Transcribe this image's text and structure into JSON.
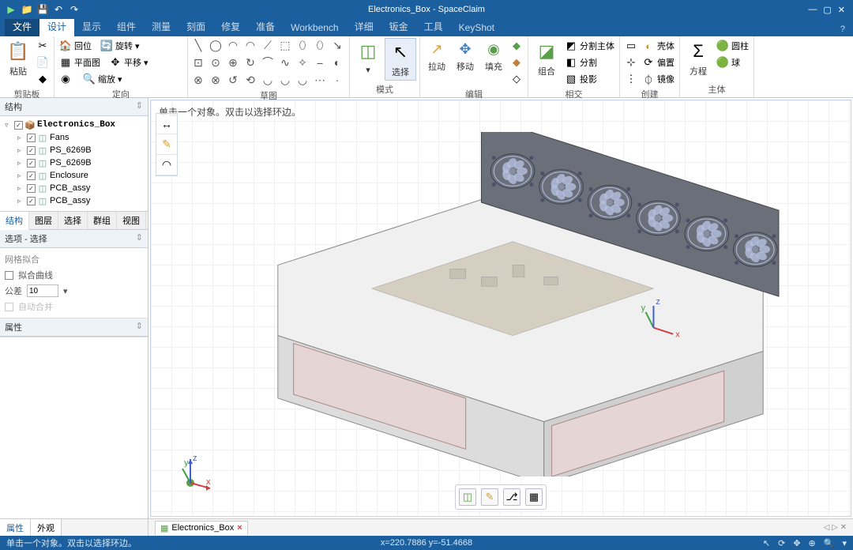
{
  "title": "Electronics_Box - SpaceClaim",
  "window_controls": {
    "min": "—",
    "max": "▢",
    "close": "✕"
  },
  "qat": [
    "▶",
    "📁",
    "💾",
    "↶",
    "↷"
  ],
  "menu": {
    "file": "文件",
    "tabs": [
      "设计",
      "显示",
      "组件",
      "测量",
      "刻面",
      "修复",
      "准备",
      "Workbench",
      "详细",
      "钣金",
      "工具",
      "KeyShot"
    ],
    "active": "设计",
    "help": "?"
  },
  "ribbon": {
    "clipboard": {
      "label": "剪贴板",
      "paste": "粘贴"
    },
    "orient": {
      "label": "定向",
      "rows": [
        [
          "🏠",
          "回位",
          "🔄",
          "旋转 ▾"
        ],
        [
          "▦",
          "平面图",
          "✥",
          "平移 ▾"
        ],
        [
          "◉",
          "",
          "🔍",
          "缩放 ▾"
        ]
      ]
    },
    "sketch": {
      "label": "草图",
      "glyphs": [
        "╲",
        "◯",
        "◠",
        "◠",
        "⟋",
        "⬚",
        "⬯",
        "⬯",
        "↘",
        "⊡",
        "⊙",
        "⊕",
        "↻",
        "⌒",
        "∿",
        "✧",
        "⎯",
        "◐",
        "⊗",
        "⊗",
        "↺",
        "⟲",
        "◡",
        "◡",
        "◡",
        "⋯",
        "·"
      ]
    },
    "mode": {
      "label": "模式",
      "btn1": "◫",
      "btn2": "选择",
      "btn2_icon": "↖"
    },
    "edit": {
      "label": "编辑",
      "items": [
        {
          "ic": "↗",
          "tx": "拉动"
        },
        {
          "ic": "✥",
          "tx": "移动"
        },
        {
          "ic": "◉",
          "tx": "填充"
        }
      ]
    },
    "intersect": {
      "label": "相交",
      "main": {
        "ic": "◪",
        "tx": "组合"
      },
      "rows": [
        [
          "◩",
          "分割主体"
        ],
        [
          "◧",
          "分割"
        ],
        [
          "▧",
          "投影"
        ]
      ]
    },
    "create": {
      "label": "创建",
      "col": [
        "▭",
        "⊹",
        "⋮"
      ],
      "rows": [
        [
          "◐",
          "壳体"
        ],
        [
          "⟳",
          "偏置"
        ],
        [
          "⏀",
          "镜像"
        ]
      ]
    },
    "body": {
      "label": "主体",
      "main": {
        "ic": "Σ",
        "tx": "方程"
      },
      "rows": [
        [
          "🟢",
          "圆柱"
        ],
        [
          "🟢",
          "球"
        ]
      ]
    }
  },
  "panels": {
    "structure": "结构",
    "tree": {
      "root": "Electronics_Box",
      "children": [
        "Fans",
        "PS_6269B",
        "PS_6269B",
        "Enclosure",
        "PCB_assy",
        "PCB_assy"
      ]
    },
    "left_tabs": [
      "结构",
      "图层",
      "选择",
      "群组",
      "视图"
    ],
    "left_active": "结构",
    "options": {
      "title": "选项 - 选择",
      "sec": "网格拟合",
      "fit_curve": "拟合曲线",
      "tol": "公差",
      "tol_val": "10",
      "auto": "自动合并"
    },
    "properties": "属性"
  },
  "viewport": {
    "hint": "单击一个对象。双击以选择环边。",
    "toolstrip": [
      "↔",
      "✎",
      "◠"
    ],
    "axes": {
      "x": "x",
      "y": "y",
      "z": "z"
    },
    "btns": [
      "◫",
      "✎",
      "⎇",
      "▦"
    ],
    "box_color": "#d8d8d8",
    "fan_panel": "#6a6f7a",
    "fan_color": "#b5c0e0",
    "pcb_color": "#d4cfc0"
  },
  "doctabs": {
    "left": [
      "属性",
      "外观"
    ],
    "left_active": "属性",
    "file": "Electronics_Box",
    "close": "×",
    "nav": "◁ ▷ ✕"
  },
  "status": {
    "hint": "单击一个对象。双击以选择环边。",
    "coords": "x=220.7886  y=-51.4668",
    "tools": [
      "↖",
      "⟳",
      "✥",
      "⊕",
      "🔍",
      "▾"
    ]
  }
}
